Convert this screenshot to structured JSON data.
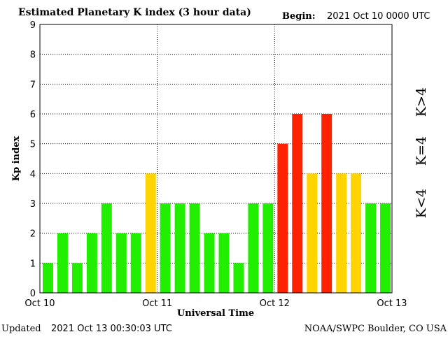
{
  "header": {
    "title": "Estimated Planetary K index (3 hour data)",
    "begin_label": "Begin:",
    "begin_value": "2021 Oct 10 0000 UTC"
  },
  "footer": {
    "updated_label": "Updated",
    "updated_value": "2021 Oct 13 00:30:03 UTC",
    "source": "NOAA/SWPC Boulder, CO USA"
  },
  "legend": {
    "low": "K<4",
    "mid": "K=4",
    "high": "K>4"
  },
  "colors": {
    "low": "#22ee00",
    "mid": "#ffd400",
    "high": "#ff2200",
    "grid": "#000000"
  },
  "chart_data": {
    "type": "bar",
    "ylabel": "Kp index",
    "xlabel": "Universal Time",
    "ylim": [
      0,
      9
    ],
    "yticks": [
      "0",
      "1",
      "2",
      "3",
      "4",
      "5",
      "6",
      "7",
      "8",
      "9"
    ],
    "xticks": [
      "Oct 10",
      "Oct 11",
      "Oct 12",
      "Oct 13"
    ],
    "grid": true,
    "interval_hours": 3,
    "values": [
      1,
      2,
      1,
      2,
      3,
      2,
      2,
      4,
      3,
      3,
      3,
      2,
      2,
      1,
      3,
      3,
      5,
      6,
      4,
      6,
      4,
      4,
      3,
      3
    ]
  }
}
